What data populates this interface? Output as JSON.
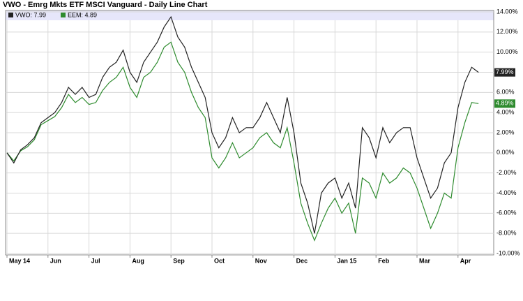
{
  "chart_data": {
    "type": "line",
    "title": "VWO - Emrg Mkts ETF MSCI Vanguard - Daily Line Chart",
    "categories": [
      "May 14",
      null,
      null,
      null,
      null,
      null,
      "Jun",
      null,
      null,
      null,
      null,
      null,
      "Jul",
      null,
      null,
      null,
      null,
      null,
      "Aug",
      null,
      null,
      null,
      null,
      null,
      "Sep",
      null,
      null,
      null,
      null,
      null,
      "Oct",
      null,
      null,
      null,
      null,
      null,
      "Nov",
      null,
      null,
      null,
      null,
      null,
      "Dec",
      null,
      null,
      null,
      null,
      null,
      "Jan 15",
      null,
      null,
      null,
      null,
      null,
      "Feb",
      null,
      null,
      null,
      null,
      null,
      "Mar",
      null,
      null,
      null,
      null,
      null,
      "Apr",
      null,
      null,
      null
    ],
    "series": [
      {
        "name": "VWO",
        "legend": "VWO: 7.99",
        "end_label": "7.99%",
        "color": "#222222",
        "values": [
          0,
          -1.0,
          0.3,
          0.8,
          1.5,
          3.0,
          3.5,
          4.0,
          5.0,
          6.5,
          5.8,
          6.5,
          5.5,
          5.8,
          7.5,
          8.5,
          9.0,
          10.2,
          8.0,
          7.0,
          9.0,
          10.0,
          11.0,
          12.5,
          13.5,
          11.5,
          10.5,
          8.5,
          7.0,
          5.5,
          2.0,
          0.5,
          1.5,
          3.5,
          2.0,
          2.5,
          2.5,
          3.5,
          5.0,
          3.5,
          2.0,
          5.5,
          2.0,
          -3.0,
          -5.0,
          -8.0,
          -4.0,
          -3.0,
          -2.5,
          -4.5,
          -3.0,
          -5.5,
          2.5,
          1.5,
          -0.5,
          2.5,
          1.0,
          2.0,
          2.5,
          2.5,
          -0.5,
          -2.5,
          -4.5,
          -3.5,
          -1.0,
          0.0,
          4.5,
          7.0,
          8.5,
          7.99
        ]
      },
      {
        "name": "EEM",
        "legend": "EEM: 4.89",
        "end_label": "4.89%",
        "color": "#2e8b2e",
        "values": [
          0,
          -0.8,
          0.2,
          0.6,
          1.3,
          2.8,
          3.2,
          3.6,
          4.5,
          5.8,
          5.0,
          5.5,
          4.8,
          5.0,
          6.2,
          7.0,
          7.5,
          8.5,
          6.5,
          5.5,
          7.5,
          8.0,
          9.0,
          10.5,
          11.0,
          9.0,
          8.0,
          6.0,
          4.5,
          3.5,
          -0.5,
          -1.5,
          -0.5,
          1.0,
          -0.5,
          0.0,
          0.5,
          1.5,
          2.0,
          1.0,
          0.5,
          2.5,
          -1.0,
          -5.0,
          -7.0,
          -8.7,
          -7.0,
          -5.5,
          -4.5,
          -6.0,
          -5.0,
          -8.0,
          -2.5,
          -3.0,
          -4.5,
          -2.0,
          -3.0,
          -2.5,
          -1.5,
          -2.0,
          -3.5,
          -5.5,
          -7.5,
          -6.0,
          -4.0,
          -4.5,
          0.5,
          3.0,
          5.0,
          4.89
        ]
      }
    ],
    "ylim": [
      -10,
      14
    ],
    "yticks": [
      {
        "value": -10,
        "label": "-10.00%"
      },
      {
        "value": -8,
        "label": "-8.00%"
      },
      {
        "value": -6,
        "label": "-6.00%"
      },
      {
        "value": -4,
        "label": "-4.00%"
      },
      {
        "value": -2,
        "label": "-2.00%"
      },
      {
        "value": 0,
        "label": "0.00%"
      },
      {
        "value": 2,
        "label": "2.00%"
      },
      {
        "value": 4,
        "label": "4.00%"
      },
      {
        "value": 6,
        "label": "6.00%"
      },
      {
        "value": 8,
        "label": "8.00%"
      },
      {
        "value": 10,
        "label": "10.00%"
      },
      {
        "value": 12,
        "label": "12.00%"
      },
      {
        "value": 14,
        "label": "14.00%"
      }
    ],
    "grid": true
  }
}
